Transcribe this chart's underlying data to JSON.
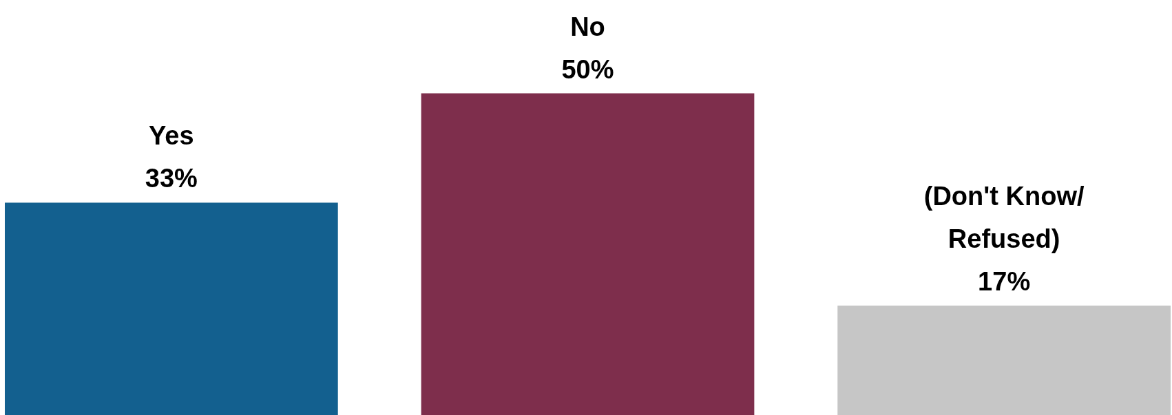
{
  "chart_data": {
    "type": "bar",
    "categories": [
      "Yes",
      "No",
      "(Don't Know/ Refused)"
    ],
    "values": [
      33,
      50,
      17
    ],
    "colors": [
      "#13608f",
      "#7e2e4c",
      "#c6c6c6"
    ],
    "value_labels": [
      "33%",
      "50%",
      "17%"
    ]
  }
}
